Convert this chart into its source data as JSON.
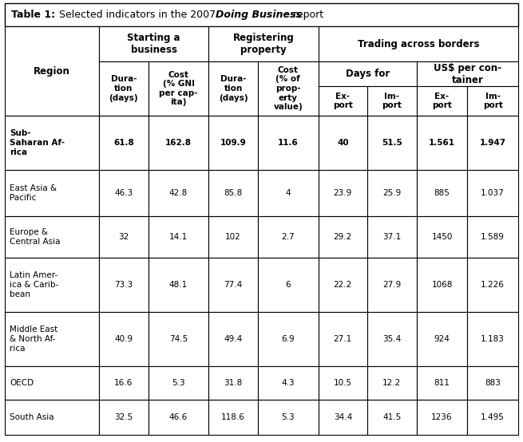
{
  "col_headers": [
    "Dura-\ntion\n(days)",
    "Cost\n(% GNI\nper cap-\nita)",
    "Dura-\ntion\n(days)",
    "Cost\n(% of\nprop-\nerty\nvalue)",
    "Ex-\nport",
    "Im-\nport",
    "Ex-\nport",
    "Im-\nport"
  ],
  "rows": [
    {
      "region": "Sub-\nSaharan Af-\nrica",
      "values": [
        "61.8",
        "162.8",
        "109.9",
        "11.6",
        "40",
        "51.5",
        "1.561",
        "1.947"
      ],
      "bold": true
    },
    {
      "region": "East Asia &\nPacific",
      "values": [
        "46.3",
        "42.8",
        "85.8",
        "4",
        "23.9",
        "25.9",
        "885",
        "1.037"
      ],
      "bold": false
    },
    {
      "region": "Europe &\nCentral Asia",
      "values": [
        "32",
        "14.1",
        "102",
        "2.7",
        "29.2",
        "37.1",
        "1450",
        "1.589"
      ],
      "bold": false
    },
    {
      "region": "Latin Amer-\nica & Carib-\nbean",
      "values": [
        "73.3",
        "48.1",
        "77.4",
        "6",
        "22.2",
        "27.9",
        "1068",
        "1.226"
      ],
      "bold": false
    },
    {
      "region": "Middle East\n& North Af-\nrica",
      "values": [
        "40.9",
        "74.5",
        "49.4",
        "6.9",
        "27.1",
        "35.4",
        "924",
        "1.183"
      ],
      "bold": false
    },
    {
      "region": "OECD",
      "values": [
        "16.6",
        "5.3",
        "31.8",
        "4.3",
        "10.5",
        "12.2",
        "811",
        "883"
      ],
      "bold": false
    },
    {
      "region": "South Asia",
      "values": [
        "32.5",
        "46.6",
        "118.6",
        "5.3",
        "34.4",
        "41.5",
        "1236",
        "1.495"
      ],
      "bold": false
    }
  ],
  "font_size": 8.0,
  "title_font_size": 9.0,
  "background_color": "#ffffff"
}
